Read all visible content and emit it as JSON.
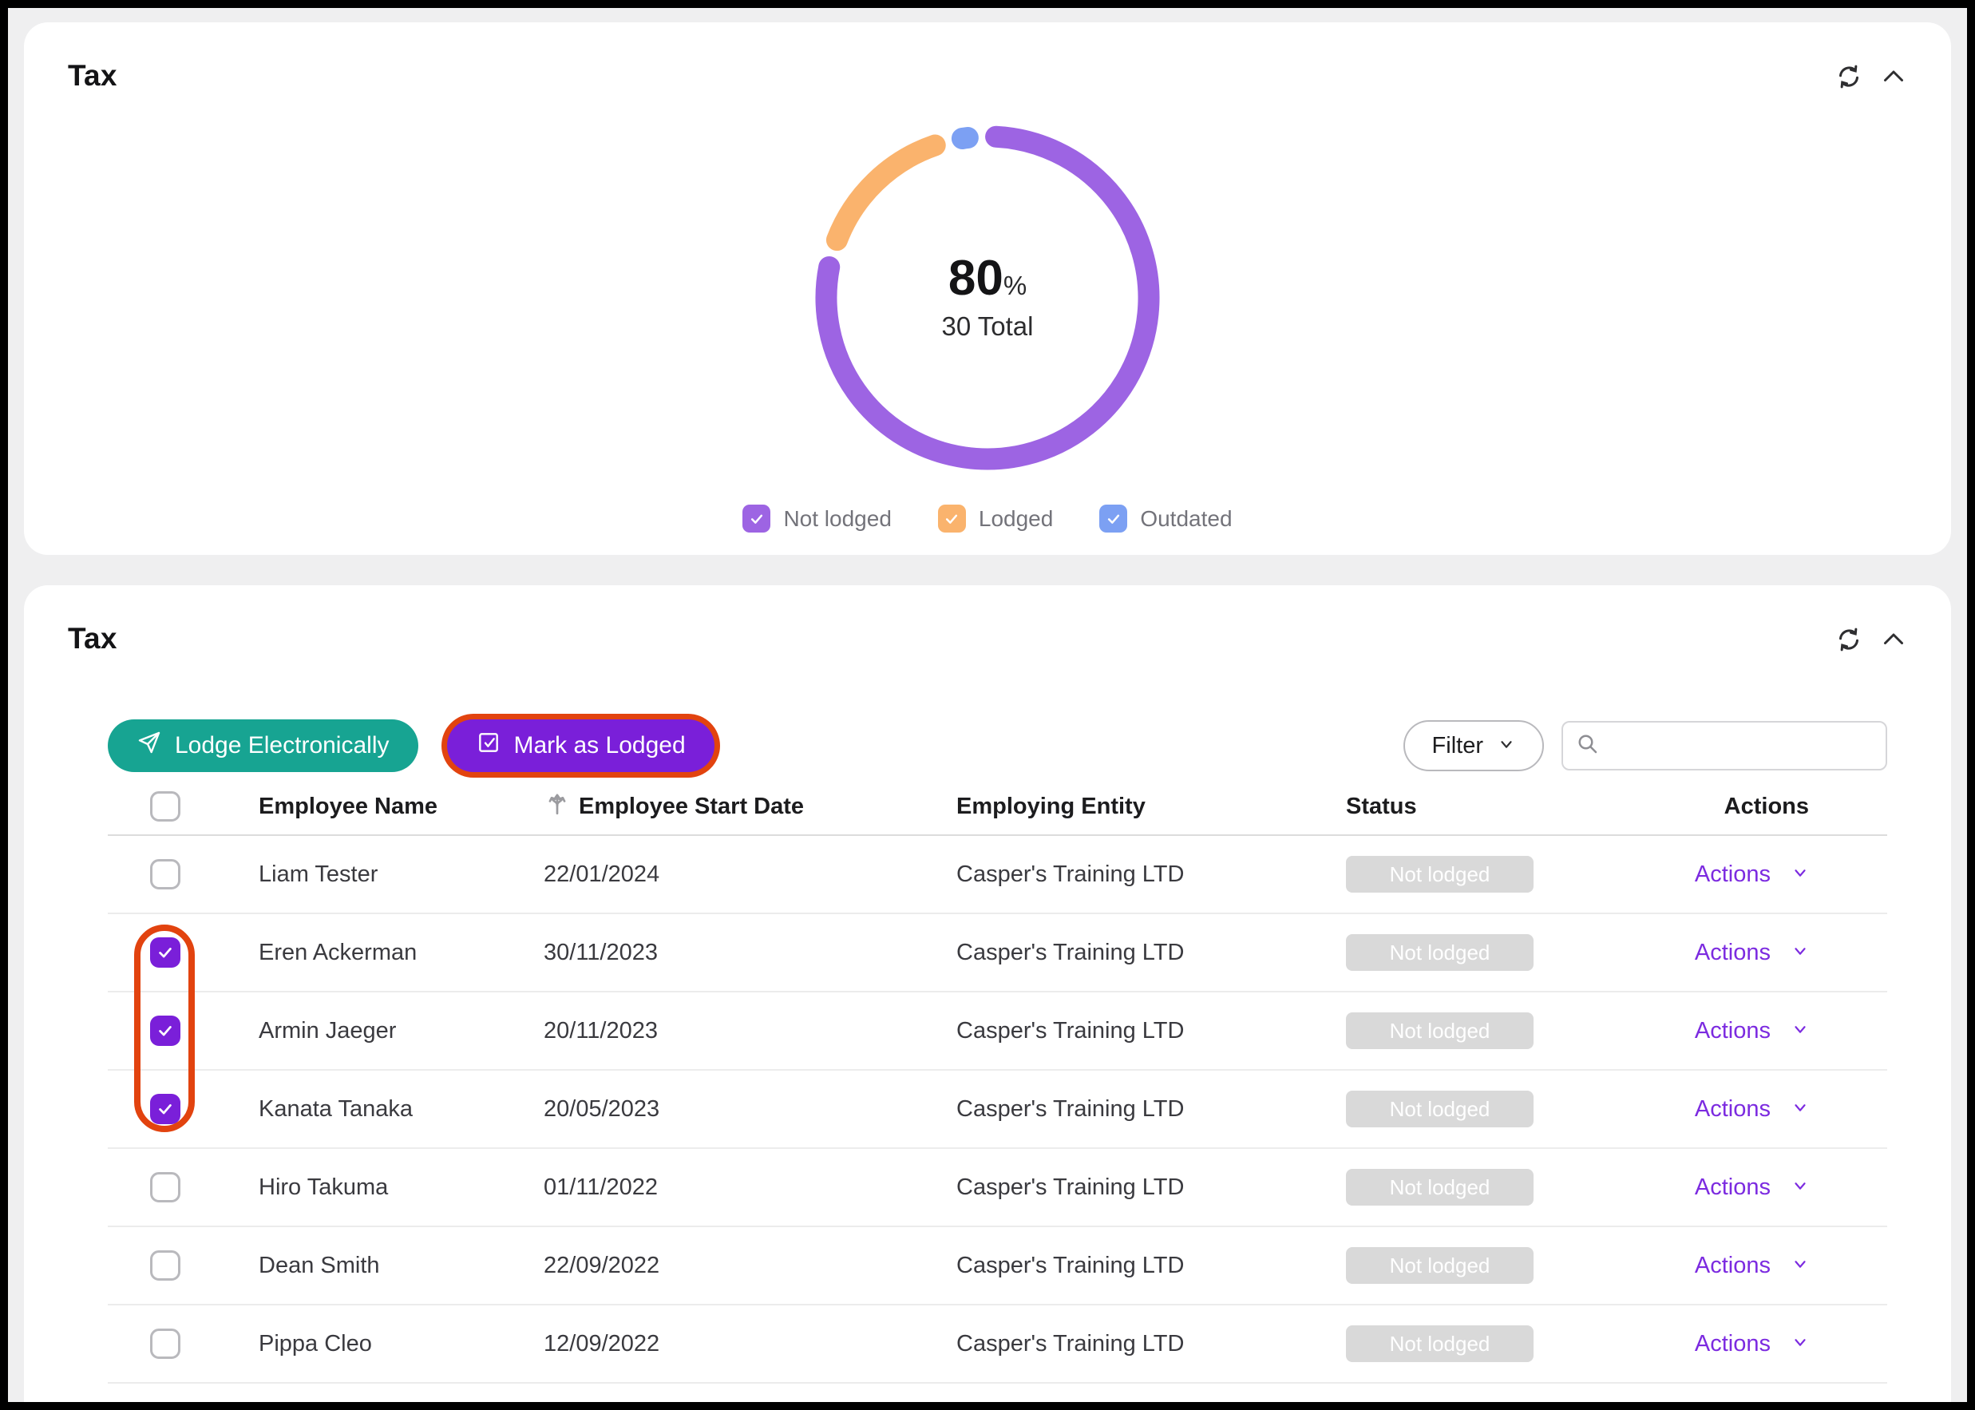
{
  "summary_card": {
    "title": "Tax"
  },
  "chart_data": {
    "type": "pie",
    "subtype": "donut",
    "title": "Tax",
    "total": 30,
    "center": {
      "value": "80",
      "suffix": "%",
      "subtitle": "30 Total"
    },
    "segments": [
      {
        "label": "Not lodged",
        "value": 24,
        "percent": 80,
        "color": "#9d64e3"
      },
      {
        "label": "Lodged",
        "value": 5,
        "percent": 16.7,
        "color": "#fab36d"
      },
      {
        "label": "Outdated",
        "value": 1,
        "percent": 3.3,
        "color": "#7ca0f3"
      }
    ],
    "legend_position": "bottom"
  },
  "table_card": {
    "title": "Tax",
    "toolbar": {
      "lodge_button": "Lodge Electronically",
      "mark_button": "Mark as Lodged",
      "filter_label": "Filter",
      "search_placeholder": ""
    },
    "columns": [
      "",
      "Employee Name",
      "Employee Start Date",
      "Employing Entity",
      "Status",
      "Actions"
    ],
    "actions_label": "Actions",
    "rows": [
      {
        "checked": false,
        "name": "Liam Tester",
        "start_date": "22/01/2024",
        "entity": "Casper's Training LTD",
        "status": "Not lodged"
      },
      {
        "checked": true,
        "name": "Eren Ackerman",
        "start_date": "30/11/2023",
        "entity": "Casper's Training LTD",
        "status": "Not lodged"
      },
      {
        "checked": true,
        "name": "Armin Jaeger",
        "start_date": "20/11/2023",
        "entity": "Casper's Training LTD",
        "status": "Not lodged"
      },
      {
        "checked": true,
        "name": "Kanata Tanaka",
        "start_date": "20/05/2023",
        "entity": "Casper's Training LTD",
        "status": "Not lodged"
      },
      {
        "checked": false,
        "name": "Hiro Takuma",
        "start_date": "01/11/2022",
        "entity": "Casper's Training LTD",
        "status": "Not lodged"
      },
      {
        "checked": false,
        "name": "Dean Smith",
        "start_date": "22/09/2022",
        "entity": "Casper's Training LTD",
        "status": "Not lodged"
      },
      {
        "checked": false,
        "name": "Pippa Cleo",
        "start_date": "12/09/2022",
        "entity": "Casper's Training LTD",
        "status": "Not lodged"
      }
    ],
    "colors": {
      "lodge_button": "#17a492",
      "mark_button": "#7a1fd9",
      "annotation_ring": "#e2430f",
      "actions_link": "#7c2be0",
      "badge_bg": "#d9d9d9"
    }
  }
}
